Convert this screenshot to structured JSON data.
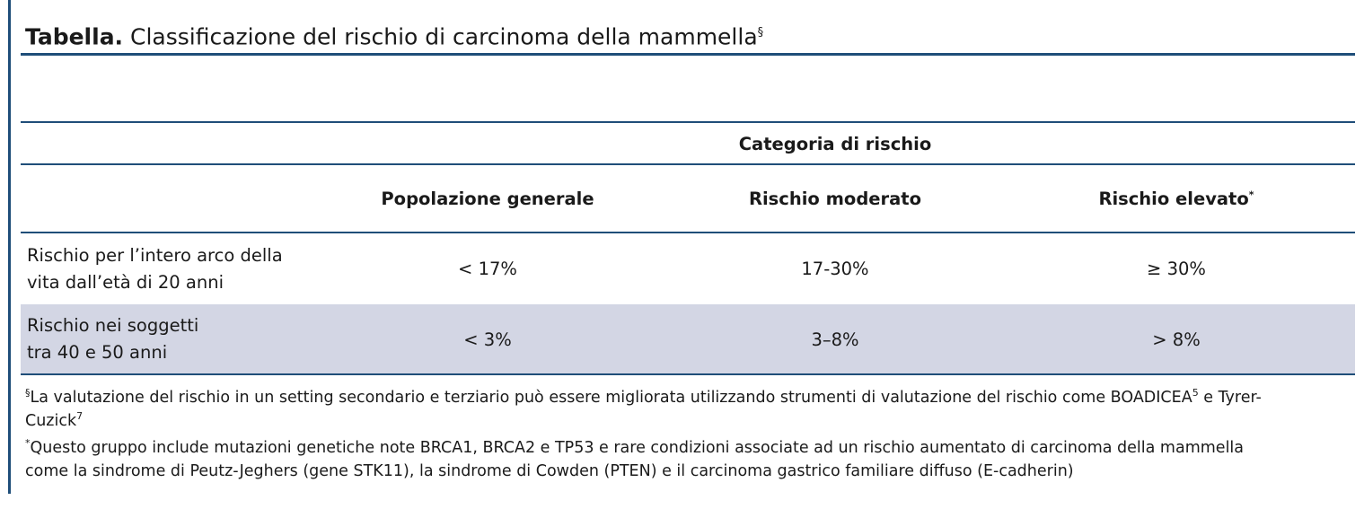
{
  "title": {
    "label": "Tabella.",
    "text": "Classificazione del rischio di carcinoma della mammella",
    "marker": "§"
  },
  "table": {
    "group_header": "Categoria di rischio",
    "columns": [
      {
        "label": "Popolazione generale",
        "marker": ""
      },
      {
        "label": "Rischio moderato",
        "marker": ""
      },
      {
        "label": "Rischio elevato",
        "marker": "*"
      }
    ],
    "rows": [
      {
        "label_line1": "Rischio per l’intero arco della",
        "label_line2": "vita dall’età di 20 anni",
        "values": [
          "< 17%",
          "17-30%",
          "≥ 30%"
        ]
      },
      {
        "label_line1": "Rischio nei soggetti",
        "label_line2": "tra 40 e 50 anni",
        "values": [
          "< 3%",
          "3–8%",
          "> 8%"
        ]
      }
    ]
  },
  "footnotes": {
    "n1_marker": "§",
    "n1_part1": "La valutazione del rischio in un setting secondario e terziario può essere migliorata utilizzando strumenti di valutazione del rischio come BOADICEA",
    "n1_ref1": "5",
    "n1_part2": " e Tyrer-",
    "n1_line2": "Cuzick",
    "n1_ref2": "7",
    "n2_marker": "*",
    "n2_line1": "Questo gruppo include mutazioni genetiche note BRCA1, BRCA2 e TP53 e rare condizioni associate ad un rischio aumentato di carcinoma della mammella",
    "n2_line2": "come la sindrome di Peutz-Jeghers (gene STK11), la sindrome di Cowden (PTEN) e il carcinoma gastrico familiare diffuso (E-cadherin)"
  },
  "colors": {
    "rule": "#1f4e79",
    "shaded_row": "#d3d6e4"
  }
}
